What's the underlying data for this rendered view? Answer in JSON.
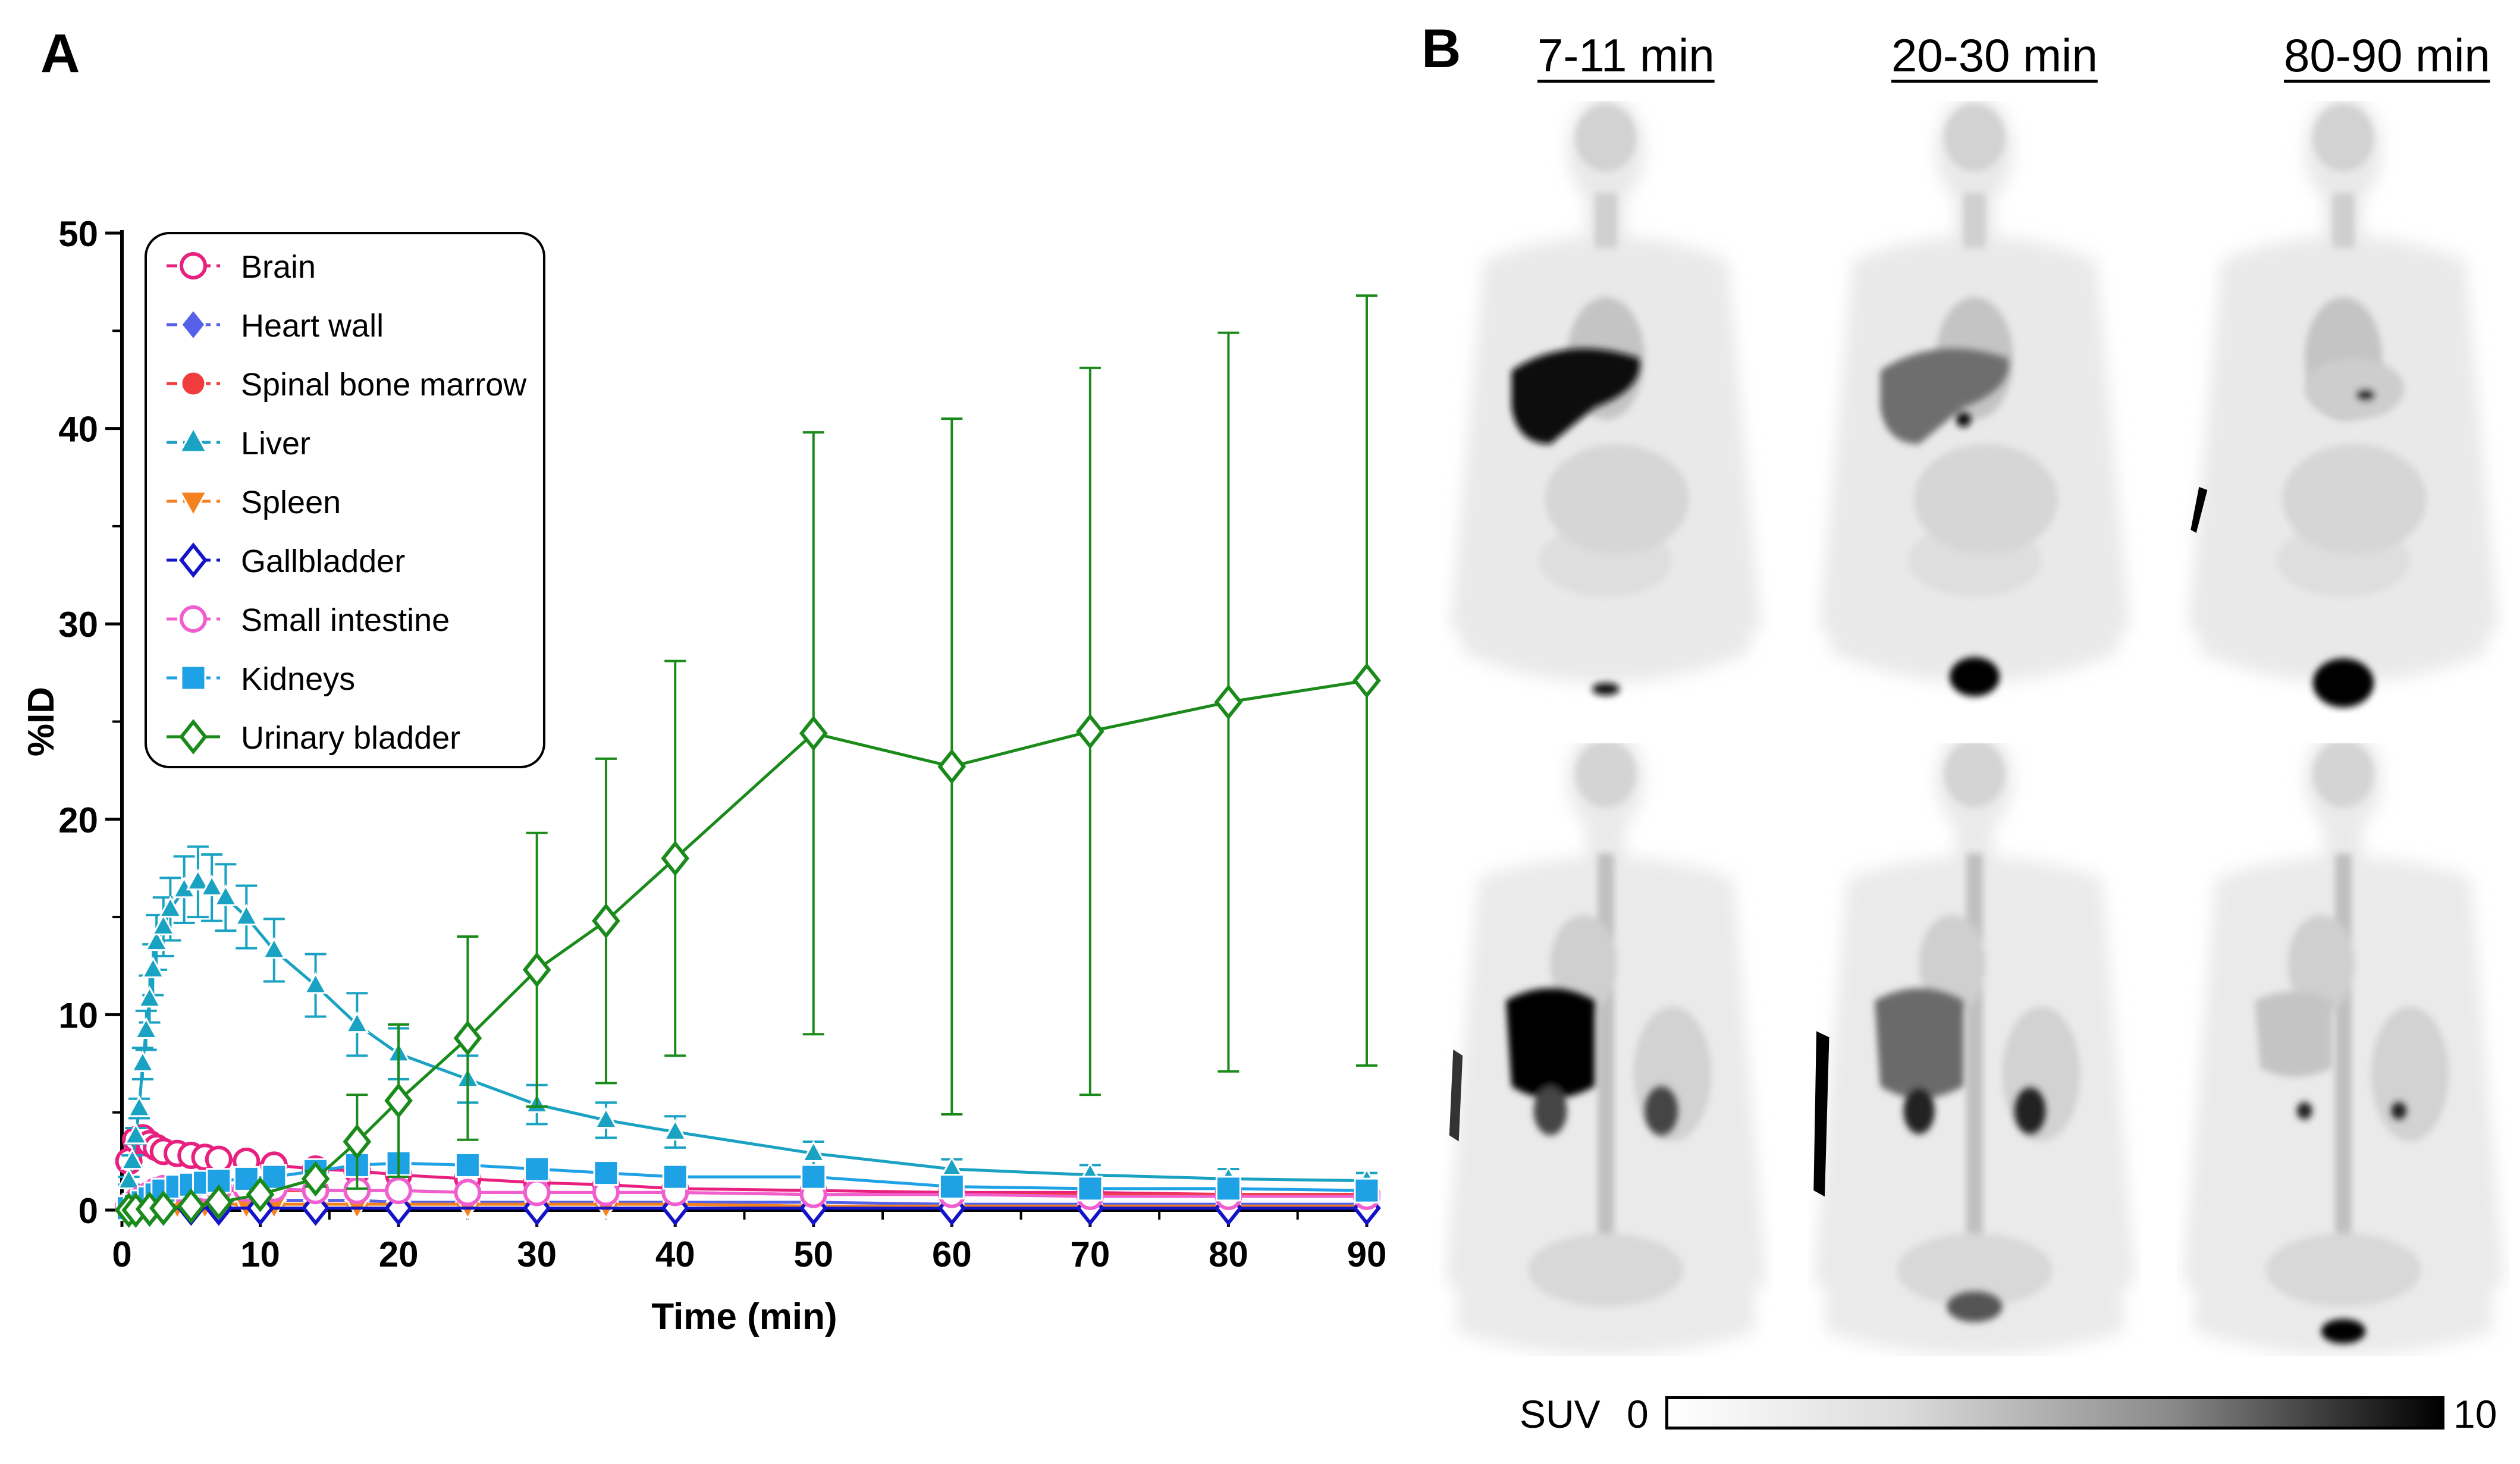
{
  "panel_a": {
    "letter": "A"
  },
  "panel_b": {
    "letter": "B",
    "time_labels": [
      "7-11 min",
      "20-30 min",
      "80-90 min"
    ],
    "colorbar": {
      "label": "SUV",
      "min_label": "0",
      "max_label": "10"
    }
  },
  "chart_data": {
    "type": "line",
    "title": "",
    "xlabel": "Time (min)",
    "ylabel": "%ID",
    "xlim": [
      0,
      90
    ],
    "ylim": [
      0,
      50
    ],
    "xticks": [
      0,
      10,
      20,
      30,
      40,
      50,
      60,
      70,
      80,
      90
    ],
    "yticks": [
      0,
      10,
      20,
      30,
      40,
      50
    ],
    "grid": false,
    "legend_position": "top-left",
    "series": [
      {
        "name": "Brain",
        "color": "#e8207f",
        "marker": "circle-open",
        "x": [
          0.5,
          1,
          1.5,
          2,
          2.5,
          3,
          4,
          5,
          6,
          7,
          9,
          11,
          14,
          17,
          20,
          25,
          30,
          35,
          40,
          50,
          60,
          70,
          80,
          90
        ],
        "y": [
          2.5,
          3.6,
          3.7,
          3.4,
          3.2,
          3.0,
          2.9,
          2.8,
          2.7,
          2.6,
          2.5,
          2.3,
          2.1,
          2.0,
          1.8,
          1.6,
          1.4,
          1.3,
          1.1,
          1.0,
          0.9,
          0.9,
          0.8,
          0.8
        ],
        "err": [
          0.3,
          0.4,
          0.4,
          0.4,
          0.3,
          0.3,
          0.3,
          0.3,
          0.3,
          0.3,
          0.3,
          0.2,
          0.2,
          0.2,
          0.2,
          0.2,
          0.2,
          0.1,
          0.1,
          0.1,
          0.1,
          0.1,
          0.1,
          0.1
        ]
      },
      {
        "name": "Heart wall",
        "color": "#5561e8",
        "marker": "diamond-filled",
        "x": [
          0.5,
          1,
          1.5,
          2,
          2.5,
          3,
          4,
          5,
          6,
          7,
          9,
          11,
          14,
          17,
          20,
          25,
          30,
          35,
          40,
          50,
          60,
          70,
          80,
          90
        ],
        "y": [
          0.2,
          0.3,
          0.4,
          0.5,
          0.5,
          0.5,
          0.5,
          0.5,
          0.5,
          0.5,
          0.5,
          0.5,
          0.5,
          0.5,
          0.4,
          0.4,
          0.4,
          0.4,
          0.4,
          0.4,
          0.3,
          0.3,
          0.3,
          0.3
        ],
        "err": [
          0.05,
          0.05,
          0.05,
          0.05,
          0.05,
          0.05,
          0.05,
          0.05,
          0.05,
          0.05,
          0.05,
          0.05,
          0.05,
          0.05,
          0.05,
          0.05,
          0.05,
          0.05,
          0.05,
          0.05,
          0.05,
          0.05,
          0.05,
          0.05
        ]
      },
      {
        "name": "Spinal bone marrow",
        "color": "#f03c3c",
        "marker": "circle-filled",
        "x": [
          0.5,
          1,
          1.5,
          2,
          2.5,
          3,
          4,
          5,
          6,
          7,
          9,
          11,
          14,
          17,
          20,
          25,
          30,
          35,
          40,
          50,
          60,
          70,
          80,
          90
        ],
        "y": [
          0.3,
          0.6,
          0.8,
          0.9,
          1.0,
          1.0,
          1.0,
          1.0,
          1.0,
          1.0,
          1.0,
          1.0,
          1.0,
          1.0,
          1.0,
          0.9,
          0.9,
          0.9,
          0.9,
          0.8,
          0.8,
          0.8,
          0.8,
          0.8
        ],
        "err": [
          0.1,
          0.1,
          0.1,
          0.1,
          0.1,
          0.1,
          0.1,
          0.1,
          0.1,
          0.1,
          0.1,
          0.1,
          0.1,
          0.1,
          0.1,
          0.1,
          0.1,
          0.1,
          0.1,
          0.1,
          0.1,
          0.1,
          0.1,
          0.1
        ]
      },
      {
        "name": "Liver",
        "color": "#1aa2c2",
        "marker": "triangle-up-filled",
        "x": [
          0.5,
          0.75,
          1,
          1.25,
          1.5,
          1.75,
          2,
          2.25,
          2.5,
          3,
          3.5,
          4.5,
          5.5,
          6.5,
          7.5,
          9,
          11,
          14,
          17,
          20,
          25,
          30,
          35,
          40,
          50,
          60,
          70,
          80,
          90
        ],
        "y": [
          1.5,
          2.5,
          3.8,
          5.2,
          7.5,
          9.2,
          10.8,
          12.3,
          13.7,
          14.5,
          15.4,
          16.4,
          16.8,
          16.5,
          16.0,
          15.0,
          13.3,
          11.5,
          9.5,
          8.0,
          6.7,
          5.4,
          4.6,
          4.0,
          2.9,
          2.1,
          1.8,
          1.6,
          1.5
        ],
        "err": [
          0.2,
          0.3,
          0.4,
          0.5,
          0.8,
          1.0,
          1.2,
          1.3,
          1.4,
          1.5,
          1.6,
          1.7,
          1.8,
          1.7,
          1.7,
          1.6,
          1.6,
          1.6,
          1.6,
          1.3,
          1.2,
          1.0,
          0.9,
          0.8,
          0.6,
          0.5,
          0.5,
          0.5,
          0.4
        ]
      },
      {
        "name": "Spleen",
        "color": "#f5821f",
        "marker": "triangle-down-filled",
        "x": [
          0.5,
          1,
          1.5,
          2,
          2.5,
          3,
          4,
          5,
          6,
          7,
          9,
          11,
          14,
          17,
          20,
          25,
          30,
          35,
          40,
          50,
          60,
          70,
          80,
          90
        ],
        "y": [
          0.1,
          0.2,
          0.3,
          0.3,
          0.3,
          0.3,
          0.3,
          0.3,
          0.3,
          0.3,
          0.3,
          0.3,
          0.3,
          0.3,
          0.3,
          0.3,
          0.3,
          0.3,
          0.3,
          0.2,
          0.2,
          0.2,
          0.2,
          0.2
        ],
        "err": [
          0.05,
          0.05,
          0.05,
          0.05,
          0.05,
          0.05,
          0.05,
          0.05,
          0.05,
          0.05,
          0.05,
          0.05,
          0.05,
          0.05,
          0.05,
          0.05,
          0.05,
          0.05,
          0.05,
          0.05,
          0.05,
          0.05,
          0.05,
          0.05
        ]
      },
      {
        "name": "Gallbladder",
        "color": "#1313c8",
        "marker": "diamond-open",
        "x": [
          0.5,
          1,
          2,
          3,
          5,
          7,
          10,
          14,
          20,
          30,
          40,
          50,
          60,
          70,
          80,
          90
        ],
        "y": [
          0.0,
          0.0,
          0.05,
          0.1,
          0.1,
          0.1,
          0.1,
          0.1,
          0.1,
          0.1,
          0.1,
          0.1,
          0.1,
          0.1,
          0.1,
          0.1
        ],
        "err": [
          0,
          0,
          0,
          0,
          0,
          0,
          0,
          0,
          0,
          0,
          0,
          0,
          0,
          0,
          0,
          0
        ]
      },
      {
        "name": "Small intestine",
        "color": "#ef5fcf",
        "marker": "circle-open",
        "x": [
          0.5,
          1,
          1.5,
          2,
          2.5,
          3,
          4,
          5,
          6,
          7,
          9,
          11,
          14,
          17,
          20,
          25,
          30,
          35,
          40,
          50,
          60,
          70,
          80,
          90
        ],
        "y": [
          0.2,
          0.4,
          0.6,
          0.8,
          1.0,
          1.1,
          1.1,
          1.1,
          1.1,
          1.1,
          1.1,
          1.1,
          1.0,
          1.0,
          1.0,
          0.9,
          0.9,
          0.9,
          0.9,
          0.8,
          0.8,
          0.7,
          0.7,
          0.7
        ],
        "err": [
          0.1,
          0.1,
          0.1,
          0.1,
          0.1,
          0.1,
          0.1,
          0.1,
          0.1,
          0.1,
          0.1,
          0.1,
          0.1,
          0.1,
          0.1,
          0.1,
          0.1,
          0.1,
          0.1,
          0.1,
          0.1,
          0.1,
          0.1,
          0.1
        ]
      },
      {
        "name": "Kidneys",
        "color": "#1fa1e6",
        "marker": "square-filled",
        "x": [
          0.5,
          1,
          1.5,
          2,
          2.5,
          3,
          4,
          5,
          6,
          7,
          9,
          11,
          14,
          17,
          20,
          25,
          30,
          35,
          40,
          50,
          60,
          70,
          80,
          90
        ],
        "y": [
          0.1,
          0.2,
          0.4,
          0.6,
          0.8,
          1.0,
          1.2,
          1.3,
          1.4,
          1.5,
          1.6,
          1.7,
          2.0,
          2.3,
          2.4,
          2.3,
          2.1,
          1.9,
          1.7,
          1.7,
          1.2,
          1.1,
          1.1,
          1.0
        ],
        "err": [
          0.05,
          0.05,
          0.1,
          0.1,
          0.1,
          0.1,
          0.1,
          0.1,
          0.1,
          0.1,
          0.2,
          0.2,
          0.2,
          0.2,
          0.2,
          0.2,
          0.2,
          0.2,
          0.2,
          0.2,
          0.2,
          0.2,
          0.2,
          0.2
        ]
      },
      {
        "name": "Urinary bladder",
        "color": "#1a8a1a",
        "marker": "diamond-open",
        "x": [
          0.5,
          1,
          2,
          3,
          5,
          7,
          10,
          14,
          17,
          20,
          25,
          30,
          35,
          40,
          50,
          60,
          70,
          80,
          90
        ],
        "y": [
          0.0,
          0.0,
          0.05,
          0.1,
          0.2,
          0.4,
          0.8,
          1.6,
          3.5,
          5.6,
          8.8,
          12.3,
          14.8,
          18.0,
          24.4,
          22.7,
          24.5,
          26.0,
          27.1
        ],
        "err": [
          0,
          0,
          0,
          0,
          0,
          0.1,
          0.2,
          0.4,
          2.4,
          3.9,
          5.2,
          7.0,
          8.3,
          10.1,
          15.4,
          17.8,
          18.6,
          18.9,
          19.7
        ]
      }
    ]
  }
}
